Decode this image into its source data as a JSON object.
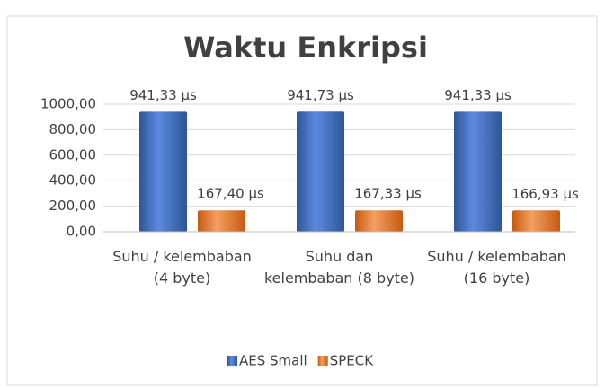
{
  "chart_data": {
    "type": "bar",
    "title": "Waktu Enkripsi",
    "categories": [
      "Suhu / kelembaban (4 byte)",
      "Suhu dan kelembaban (8 byte)",
      "Suhu / kelembaban (16 byte)"
    ],
    "series": [
      {
        "name": "AES Small",
        "color": "#4472c4",
        "values": [
          941.33,
          941.73,
          941.33
        ],
        "value_labels": [
          "941,33 µs",
          "941,73 µs",
          "941,33 µs"
        ]
      },
      {
        "name": "SPECK",
        "color": "#ed7d31",
        "values": [
          167.4,
          167.33,
          166.93
        ],
        "value_labels": [
          "167,40 µs",
          "167,33 µs",
          "166,93 µs"
        ]
      }
    ],
    "ylim": [
      0,
      1000
    ],
    "yticks": [
      {
        "value": 0,
        "label": "0,00"
      },
      {
        "value": 200,
        "label": "200,00"
      },
      {
        "value": 400,
        "label": "400,00"
      },
      {
        "value": 600,
        "label": "600,00"
      },
      {
        "value": 800,
        "label": "800,00"
      },
      {
        "value": 1000,
        "label": "1000,00"
      }
    ],
    "grid": true,
    "legend": "bottom"
  }
}
